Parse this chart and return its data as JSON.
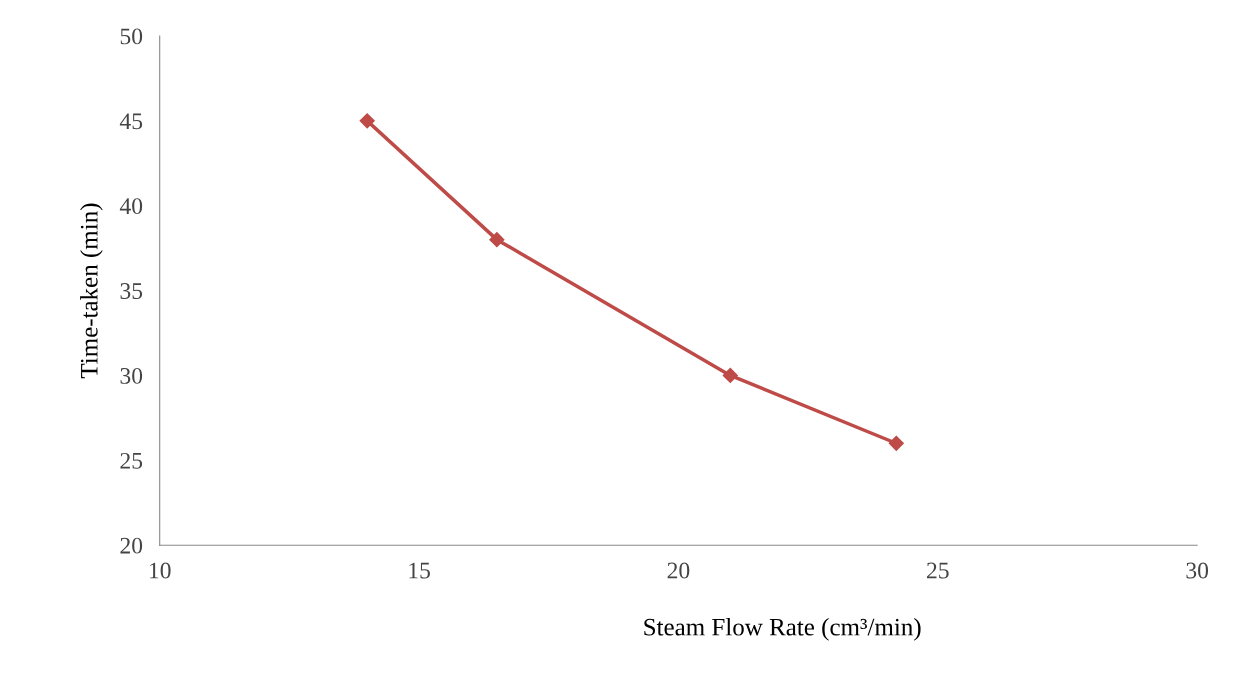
{
  "chart_data": {
    "type": "line",
    "xlabel": "Steam Flow Rate (cm³/min)",
    "ylabel": "Time-taken (min)",
    "x": [
      14,
      16.5,
      21,
      24.2
    ],
    "series": [
      {
        "color": "#be4b48",
        "values": [
          45,
          38,
          30,
          26
        ]
      }
    ],
    "xlim": [
      10,
      30
    ],
    "xticks": [
      10,
      15,
      20,
      25,
      30
    ],
    "ylim": [
      20,
      50
    ],
    "yticks": [
      20,
      25,
      30,
      35,
      40,
      45,
      50
    ],
    "marker": "diamond",
    "line_style": "solid",
    "grid": false,
    "legend": false
  }
}
